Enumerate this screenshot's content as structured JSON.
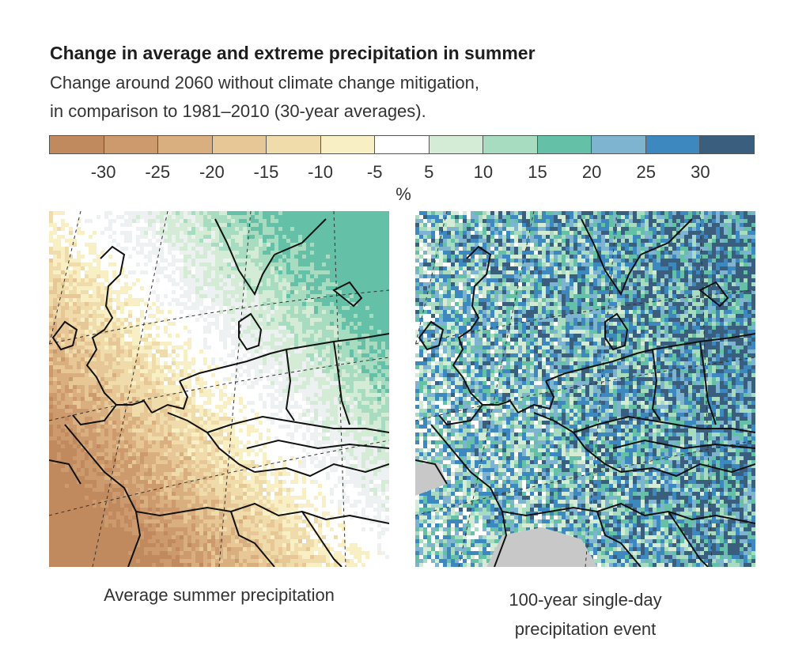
{
  "header": {
    "title": "Change in average and extreme precipitation in summer",
    "subtitle_line1": "Change around 2060 without climate change mitigation,",
    "subtitle_line2": "in comparison to 1981–2010 (30-year averages)."
  },
  "legend": {
    "unit": "%",
    "swatch_colors": [
      "#c08a5e",
      "#cc9a6c",
      "#daaf80",
      "#e6c795",
      "#f0dcaa",
      "#f8efc4",
      "#ffffff",
      "#d4ecd6",
      "#a7dcc0",
      "#64c0a6",
      "#7fb4d0",
      "#3e88c0",
      "#3a5e7e"
    ],
    "ticks": [
      "-30",
      "-25",
      "-20",
      "-15",
      "-10",
      "-5",
      "5",
      "10",
      "15",
      "20",
      "25",
      "30"
    ]
  },
  "maps": [
    {
      "caption_line1": "Average summer precipitation",
      "caption_line2": "",
      "dominant_palette": [
        "#c08a5e",
        "#cc9a6c",
        "#daaf80",
        "#e6c795",
        "#f0dcaa",
        "#f8efc4",
        "#ffffff",
        "#eef1f1",
        "#d4ecd6",
        "#a7dcc0",
        "#64c0a6"
      ]
    },
    {
      "caption_line1": "100-year single-day",
      "caption_line2": "precipitation event",
      "dominant_palette": [
        "#ffffff",
        "#d4ecd6",
        "#a7dcc0",
        "#64c0a6",
        "#7fb4d0",
        "#3e88c0",
        "#3a5e7e",
        "#c8c8c8"
      ]
    }
  ]
}
